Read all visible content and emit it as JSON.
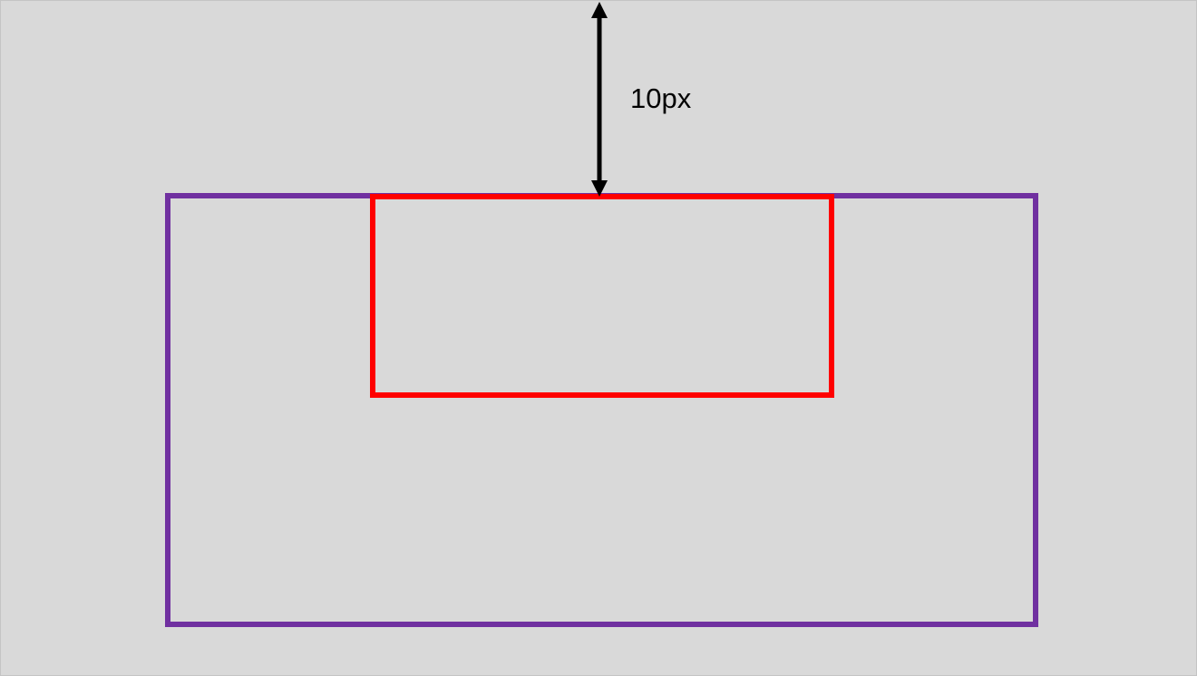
{
  "diagram": {
    "spacing_label": "10px",
    "colors": {
      "background": "#d9d9d9",
      "outer_border": "#7030a0",
      "inner_border": "#ff0000",
      "arrow": "#000000"
    },
    "icons": {
      "dimension_arrow": "double-headed-vertical-arrow-icon"
    }
  }
}
